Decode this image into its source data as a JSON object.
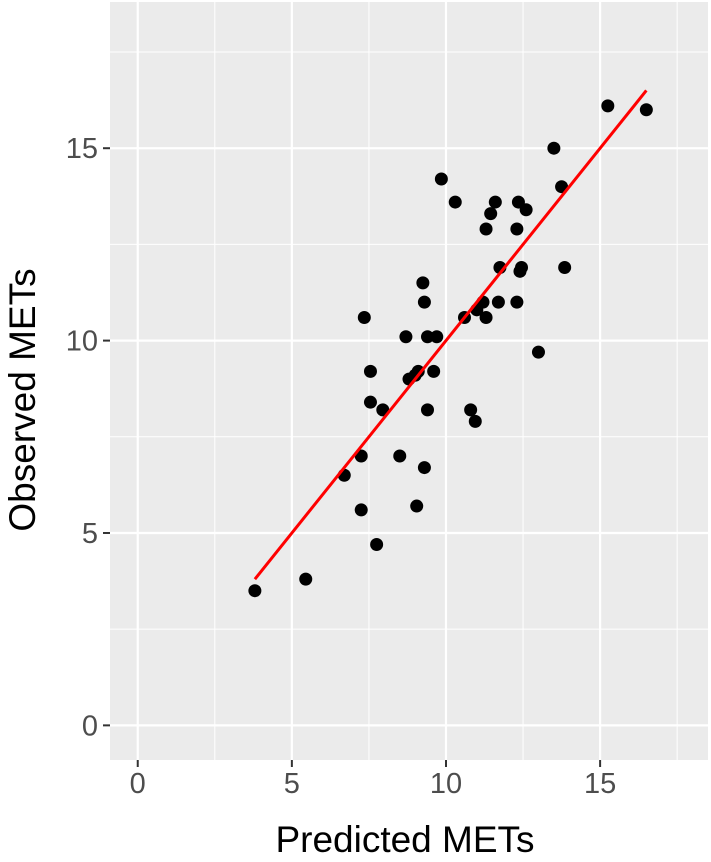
{
  "chart_data": {
    "type": "scatter",
    "xlabel": "Predicted METs",
    "ylabel": "Observed METs",
    "xlim": [
      -0.9,
      18.5
    ],
    "ylim": [
      -0.9,
      18.8
    ],
    "x_ticks": [
      0,
      5,
      10,
      15
    ],
    "y_ticks": [
      0,
      5,
      10,
      15
    ],
    "grid": true,
    "colors": {
      "panel": "#ebebeb",
      "grid": "#ffffff",
      "point": "#000000",
      "fit_line": "#ff0000"
    },
    "fit_line": {
      "x": [
        3.8,
        16.5
      ],
      "y": [
        3.8,
        16.5
      ]
    },
    "points": [
      {
        "x": 3.8,
        "y": 3.5
      },
      {
        "x": 5.45,
        "y": 3.8
      },
      {
        "x": 6.7,
        "y": 6.5
      },
      {
        "x": 7.25,
        "y": 7.0
      },
      {
        "x": 7.25,
        "y": 5.6
      },
      {
        "x": 7.35,
        "y": 10.6
      },
      {
        "x": 7.55,
        "y": 9.2
      },
      {
        "x": 7.55,
        "y": 8.4
      },
      {
        "x": 7.75,
        "y": 4.7
      },
      {
        "x": 7.95,
        "y": 8.2
      },
      {
        "x": 8.5,
        "y": 7.0
      },
      {
        "x": 8.7,
        "y": 10.1
      },
      {
        "x": 8.8,
        "y": 9.0
      },
      {
        "x": 9.0,
        "y": 9.1
      },
      {
        "x": 9.05,
        "y": 5.7
      },
      {
        "x": 9.1,
        "y": 9.2
      },
      {
        "x": 9.25,
        "y": 11.5
      },
      {
        "x": 9.3,
        "y": 11.0
      },
      {
        "x": 9.3,
        "y": 6.7
      },
      {
        "x": 9.4,
        "y": 8.2
      },
      {
        "x": 9.4,
        "y": 10.1
      },
      {
        "x": 9.6,
        "y": 9.2
      },
      {
        "x": 9.7,
        "y": 10.1
      },
      {
        "x": 9.85,
        "y": 14.2
      },
      {
        "x": 10.3,
        "y": 13.6
      },
      {
        "x": 10.6,
        "y": 10.6
      },
      {
        "x": 10.8,
        "y": 8.2
      },
      {
        "x": 10.95,
        "y": 7.9
      },
      {
        "x": 11.0,
        "y": 10.8
      },
      {
        "x": 11.2,
        "y": 11.0
      },
      {
        "x": 11.3,
        "y": 12.9
      },
      {
        "x": 11.3,
        "y": 10.6
      },
      {
        "x": 11.45,
        "y": 13.3
      },
      {
        "x": 11.6,
        "y": 13.6
      },
      {
        "x": 11.7,
        "y": 11.0
      },
      {
        "x": 11.75,
        "y": 11.9
      },
      {
        "x": 12.3,
        "y": 11.0
      },
      {
        "x": 12.3,
        "y": 12.9
      },
      {
        "x": 12.35,
        "y": 13.6
      },
      {
        "x": 12.4,
        "y": 11.8
      },
      {
        "x": 12.45,
        "y": 11.9
      },
      {
        "x": 12.6,
        "y": 13.4
      },
      {
        "x": 13.0,
        "y": 9.7
      },
      {
        "x": 13.5,
        "y": 15.0
      },
      {
        "x": 13.75,
        "y": 14.0
      },
      {
        "x": 13.85,
        "y": 11.9
      },
      {
        "x": 15.25,
        "y": 16.1
      },
      {
        "x": 16.5,
        "y": 16.0
      }
    ]
  }
}
